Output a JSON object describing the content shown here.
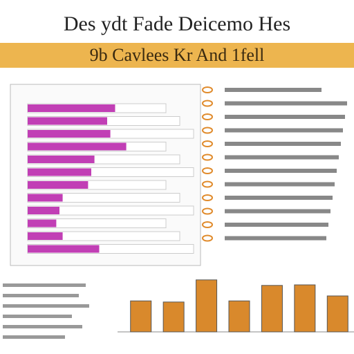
{
  "header": {
    "title": "Des ydt Fade Deicemo Hes",
    "banner": "9b Cavlees Kr And 1fell"
  },
  "chart_data": [
    {
      "type": "hbar",
      "values": [
        55,
        50,
        52,
        62,
        42,
        40,
        38,
        22,
        20,
        18,
        22,
        45
      ],
      "color": "#c13fb5",
      "xlim": [
        0,
        100
      ]
    },
    {
      "type": "bar",
      "values": [
        56,
        54,
        94,
        56,
        84,
        85,
        65
      ],
      "color": "#d9892c",
      "ylim": [
        0,
        100
      ]
    }
  ]
}
